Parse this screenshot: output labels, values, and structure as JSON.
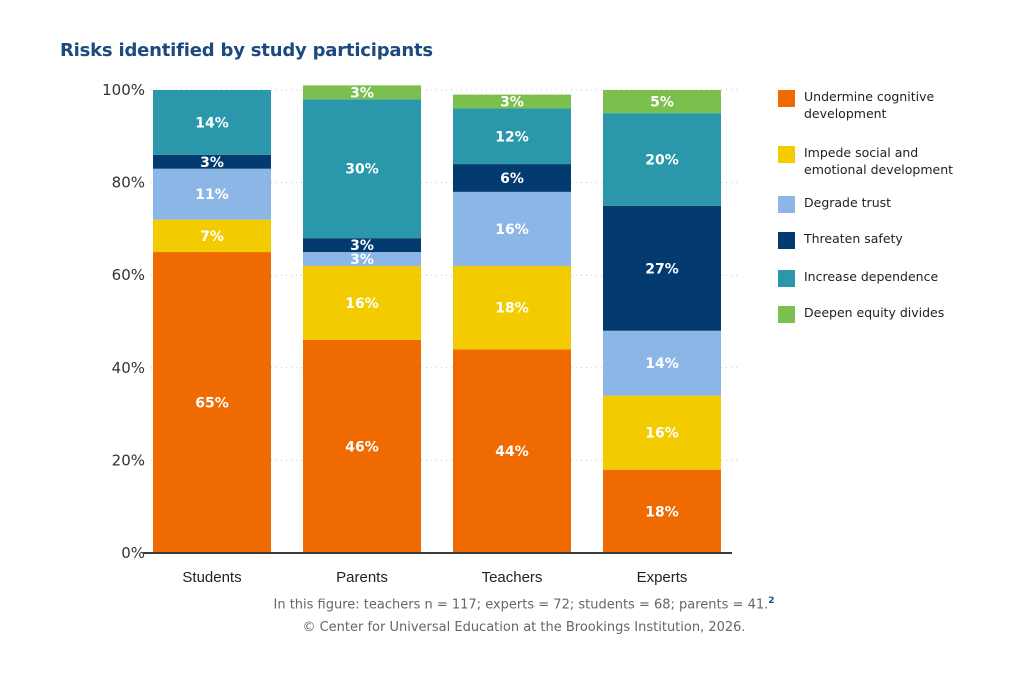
{
  "chart_data": {
    "type": "bar",
    "stacked": true,
    "title": "Risks identified by study participants",
    "xlabel": "",
    "ylabel": "",
    "ylim": [
      0,
      100
    ],
    "yticks": [
      "0%",
      "20%",
      "40%",
      "60%",
      "80%",
      "100%"
    ],
    "ytick_values": [
      0,
      20,
      40,
      60,
      80,
      100
    ],
    "grid": true,
    "legend_position": "right",
    "categories": [
      "Students",
      "Parents",
      "Teachers",
      "Experts"
    ],
    "series": [
      {
        "name": "Undermine cognitive development",
        "color": "#ef6a00",
        "values": [
          65,
          46,
          44,
          18
        ],
        "labels": [
          "65%",
          "46%",
          "44%",
          "18%"
        ]
      },
      {
        "name": "Impede social and emotional development",
        "color": "#f2cc00",
        "values": [
          7,
          16,
          18,
          16
        ],
        "labels": [
          "7%",
          "16%",
          "18%",
          "16%"
        ]
      },
      {
        "name": "Degrade trust",
        "color": "#8cb6e6",
        "values": [
          11,
          3,
          16,
          14
        ],
        "labels": [
          "11%",
          "3%",
          "16%",
          "14%"
        ]
      },
      {
        "name": "Threaten safety",
        "color": "#033a70",
        "values": [
          3,
          3,
          6,
          27
        ],
        "labels": [
          "3%",
          "3%",
          "6%",
          "27%"
        ]
      },
      {
        "name": "Increase dependence",
        "color": "#2a98aa",
        "values": [
          14,
          30,
          12,
          20
        ],
        "labels": [
          "14%",
          "30%",
          "12%",
          "20%"
        ]
      },
      {
        "name": "Deepen equity divides",
        "color": "#7bbf4f",
        "values": [
          0,
          3,
          3,
          5
        ],
        "labels": [
          "",
          "3%",
          "3%",
          "5%"
        ]
      }
    ],
    "legend": [
      {
        "line1": "Undermine cognitive",
        "line2": "development",
        "color": "#ef6a00"
      },
      {
        "line1": "Impede social and",
        "line2": "emotional development",
        "color": "#f2cc00"
      },
      {
        "line1": "Degrade trust",
        "line2": "",
        "color": "#8cb6e6"
      },
      {
        "line1": "Threaten safety",
        "line2": "",
        "color": "#033a70"
      },
      {
        "line1": "Increase dependence",
        "line2": "",
        "color": "#2a98aa"
      },
      {
        "line1": "Deepen equity divides",
        "line2": "",
        "color": "#7bbf4f"
      }
    ],
    "annotations": {
      "note": "In this figure: teachers n = 117; experts = 72; students = 68; parents = 41.",
      "note_footnote_marker": "2",
      "credit": "© Center for Universal Education at the Brookings Institution, 2026."
    }
  },
  "colors": {
    "title": "#1c4a7e",
    "axis": "#333333",
    "grid": "#c8c8c8"
  }
}
